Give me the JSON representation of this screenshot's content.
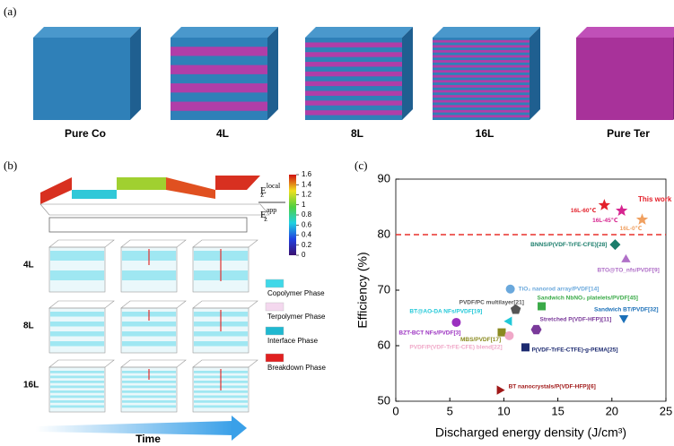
{
  "panel_a": {
    "label": "(a)",
    "cubes": [
      "Pure Co",
      "4L",
      "8L",
      "16L",
      "Pure Ter"
    ]
  },
  "panel_b": {
    "label": "(b)",
    "colorbar": {
      "ticks": [
        0,
        0.2,
        0.4,
        0.6,
        0.8,
        1,
        1.2,
        1.4,
        1.6
      ],
      "base": "E",
      "sub": "z",
      "numerator_sup": "local",
      "denominator_sup": "app"
    },
    "rows": [
      "4L",
      "8L",
      "16L"
    ],
    "legend": [
      "Copolymer Phase",
      "Terpolymer Phase",
      "Interface Phase",
      "Breakdown Phase"
    ],
    "time_label": "Time"
  },
  "chart_data": {
    "type": "scatter",
    "panel_label": "(c)",
    "x_label": "Discharged energy density (J/cm³)",
    "y_label": "Efficiency (%)",
    "xlim": [
      0,
      25
    ],
    "ylim": [
      50,
      90
    ],
    "xticks": [
      0,
      5,
      10,
      15,
      20,
      25
    ],
    "yticks": [
      50,
      60,
      70,
      80,
      90
    ],
    "reference_line": {
      "value": 80,
      "color": "#e8302a"
    },
    "highlight_label": "This work",
    "series": [
      {
        "name": "16L-60℃",
        "color": "#e3202a",
        "marker": "star",
        "x": [
          19.3
        ],
        "values": [
          85.3
        ]
      },
      {
        "name": "16L-45℃",
        "color": "#d6248f",
        "marker": "star",
        "x": [
          20.9
        ],
        "values": [
          84.3
        ]
      },
      {
        "name": "16L-0℃",
        "color": "#f0a060",
        "marker": "star",
        "x": [
          22.8
        ],
        "values": [
          82.7
        ]
      },
      {
        "name": "BNNS/P(VDF-TrFE-CFE)[28]",
        "color": "#1b7d6b",
        "marker": "diamond",
        "x": [
          20.3
        ],
        "values": [
          78.2
        ]
      },
      {
        "name": "BTO@TO_nfs/PVDF[9]",
        "color": "#b070c8",
        "marker": "triangle-up",
        "x": [
          21.3
        ],
        "values": [
          75.5
        ]
      },
      {
        "name": "TiO₂ nanorod array/PVDF[14]",
        "color": "#6aa8dc",
        "marker": "circle",
        "x": [
          10.6
        ],
        "values": [
          70.2
        ]
      },
      {
        "name": "Sandwich NbNO₃ platelets/PVDF[45]",
        "color": "#3aaa48",
        "marker": "square",
        "x": [
          13.5
        ],
        "values": [
          67.1
        ]
      },
      {
        "name": "PVDF/PC multilayer[21]",
        "color": "#555555",
        "marker": "pentagon",
        "x": [
          11.1
        ],
        "values": [
          66.5
        ]
      },
      {
        "name": "BT@AO-DA NFs/PVDF[19]",
        "color": "#20c8d8",
        "marker": "triangle-left",
        "x": [
          10.5
        ],
        "values": [
          64.4
        ]
      },
      {
        "name": "Sandwich BT/PVDF[32]",
        "color": "#1a6fb8",
        "marker": "triangle-down",
        "x": [
          21.1
        ],
        "values": [
          65.0
        ]
      },
      {
        "name": "Stretched P(VDF-HFP)[11]",
        "color": "#7a3a9a",
        "marker": "hexagon",
        "x": [
          13.0
        ],
        "values": [
          62.9
        ]
      },
      {
        "name": "BZT-BCT NFs/PVDF[3]",
        "color": "#9b30c0",
        "marker": "circle",
        "x": [
          5.6
        ],
        "values": [
          64.2
        ]
      },
      {
        "name": "MBS/PVDF[17]",
        "color": "#8a8a20",
        "marker": "square",
        "x": [
          9.8
        ],
        "values": [
          62.4
        ]
      },
      {
        "name": "PVDF/P(VDF-TrFE-CFE) blend[22]",
        "color": "#f0a8c8",
        "marker": "circle",
        "x": [
          10.5
        ],
        "values": [
          61.8
        ]
      },
      {
        "name": "P(VDF-TrFE-CTFE)-g-PEMA[25]",
        "color": "#1c2a70",
        "marker": "square",
        "x": [
          12.0
        ],
        "values": [
          59.7
        ]
      },
      {
        "name": "BT nanocrystals/P(VDF-HFP)[6]",
        "color": "#a01818",
        "marker": "triangle-right",
        "x": [
          9.6
        ],
        "values": [
          52.0
        ]
      }
    ]
  }
}
